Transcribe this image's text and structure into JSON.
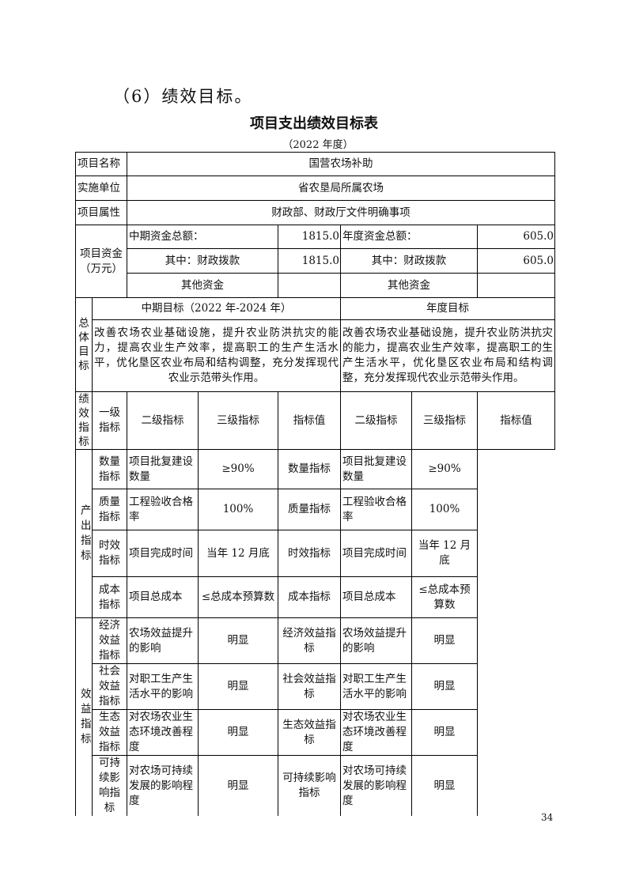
{
  "heading": "（6）绩效目标。",
  "table_title": "项目支出绩效目标表",
  "table_subtitle": "（2022 年度）",
  "info": {
    "project_name_label": "项目名称",
    "project_name": "国营农场补助",
    "unit_label": "实施单位",
    "unit": "省农垦局所属农场",
    "attribute_label": "项目属性",
    "attribute": "财政部、财政厅文件明确事项"
  },
  "funds": {
    "label": "项目资金（万元）",
    "mid_total_label": "中期资金总额：",
    "mid_total": "1815.0",
    "year_total_label": "年度资金总额：",
    "year_total": "605.0",
    "mid_fiscal_label": "其中：财政拨款",
    "mid_fiscal": "1815.0",
    "year_fiscal_label": "其中：财政拨款",
    "year_fiscal": "605.0",
    "mid_other_label": "其他资金",
    "mid_other": "",
    "year_other_label": "其他资金",
    "year_other": ""
  },
  "overall": {
    "label": "总体目标",
    "mid_header": "中期目标（2022 年-2024 年）",
    "year_header": "年度目标",
    "mid_text": "改善农场农业基础设施，提升农业防洪抗灾的能力，提高农业生产效率，提高职工的生产生活水平，优化垦区农业布局和结构调整，充分发挥现代农业示范带头作用。",
    "year_text": "改善农场农业基础设施，提升农业防洪抗灾的能力，提高农业生产效率，提高职工的生产生活水平，优化垦区农业布局和结构调整，充分发挥现代农业示范带头作用。"
  },
  "indicators": {
    "label": "绩效指标",
    "headers": [
      "一级指标",
      "二级指标",
      "三级指标",
      "指标值",
      "二级指标",
      "三级指标",
      "指标值"
    ],
    "groups": [
      {
        "level1": "产出指标",
        "rows": [
          {
            "l2": "数量指标",
            "l3": "项目批复建设数量",
            "val": "≥90%",
            "y_l2": "数量指标",
            "y_l3": "项目批复建设数量",
            "y_val": "≥90%"
          },
          {
            "l2": "质量指标",
            "l3": "工程验收合格率",
            "val": "100%",
            "y_l2": "质量指标",
            "y_l3": "工程验收合格率",
            "y_val": "100%"
          },
          {
            "l2": "时效指标",
            "l3": "项目完成时间",
            "val": "当年 12 月底",
            "y_l2": "时效指标",
            "y_l3": "项目完成时间",
            "y_val": "当年 12 月底"
          },
          {
            "l2": "成本指标",
            "l3": "项目总成本",
            "val": "≤总成本预算数",
            "y_l2": "成本指标",
            "y_l3": "项目总成本",
            "y_val": "≤总成本预算数"
          }
        ]
      },
      {
        "level1": "效益指标",
        "rows": [
          {
            "l2": "经济效益指标",
            "l3": "农场效益提升的影响",
            "val": "明显",
            "y_l2": "经济效益指标",
            "y_l3": "农场效益提升的影响",
            "y_val": "明显"
          },
          {
            "l2": "社会效益指标",
            "l3": "对职工生产生活水平的影响",
            "val": "明显",
            "y_l2": "社会效益指标",
            "y_l3": "对职工生产生活水平的影响",
            "y_val": "明显"
          },
          {
            "l2": "生态效益指标",
            "l3": "对农场农业生态环境改善程度",
            "val": "明显",
            "y_l2": "生态效益指标",
            "y_l3": "对农场农业生态环境改善程度",
            "y_val": "明显"
          },
          {
            "l2": "可持续影响指标",
            "l3": "对农场可持续发展的影响程度",
            "val": "明显",
            "y_l2": "可持续影响指标",
            "y_l3": "对农场可持续发展的影响程度",
            "y_val": "明显"
          }
        ]
      }
    ]
  },
  "page_number": "34"
}
